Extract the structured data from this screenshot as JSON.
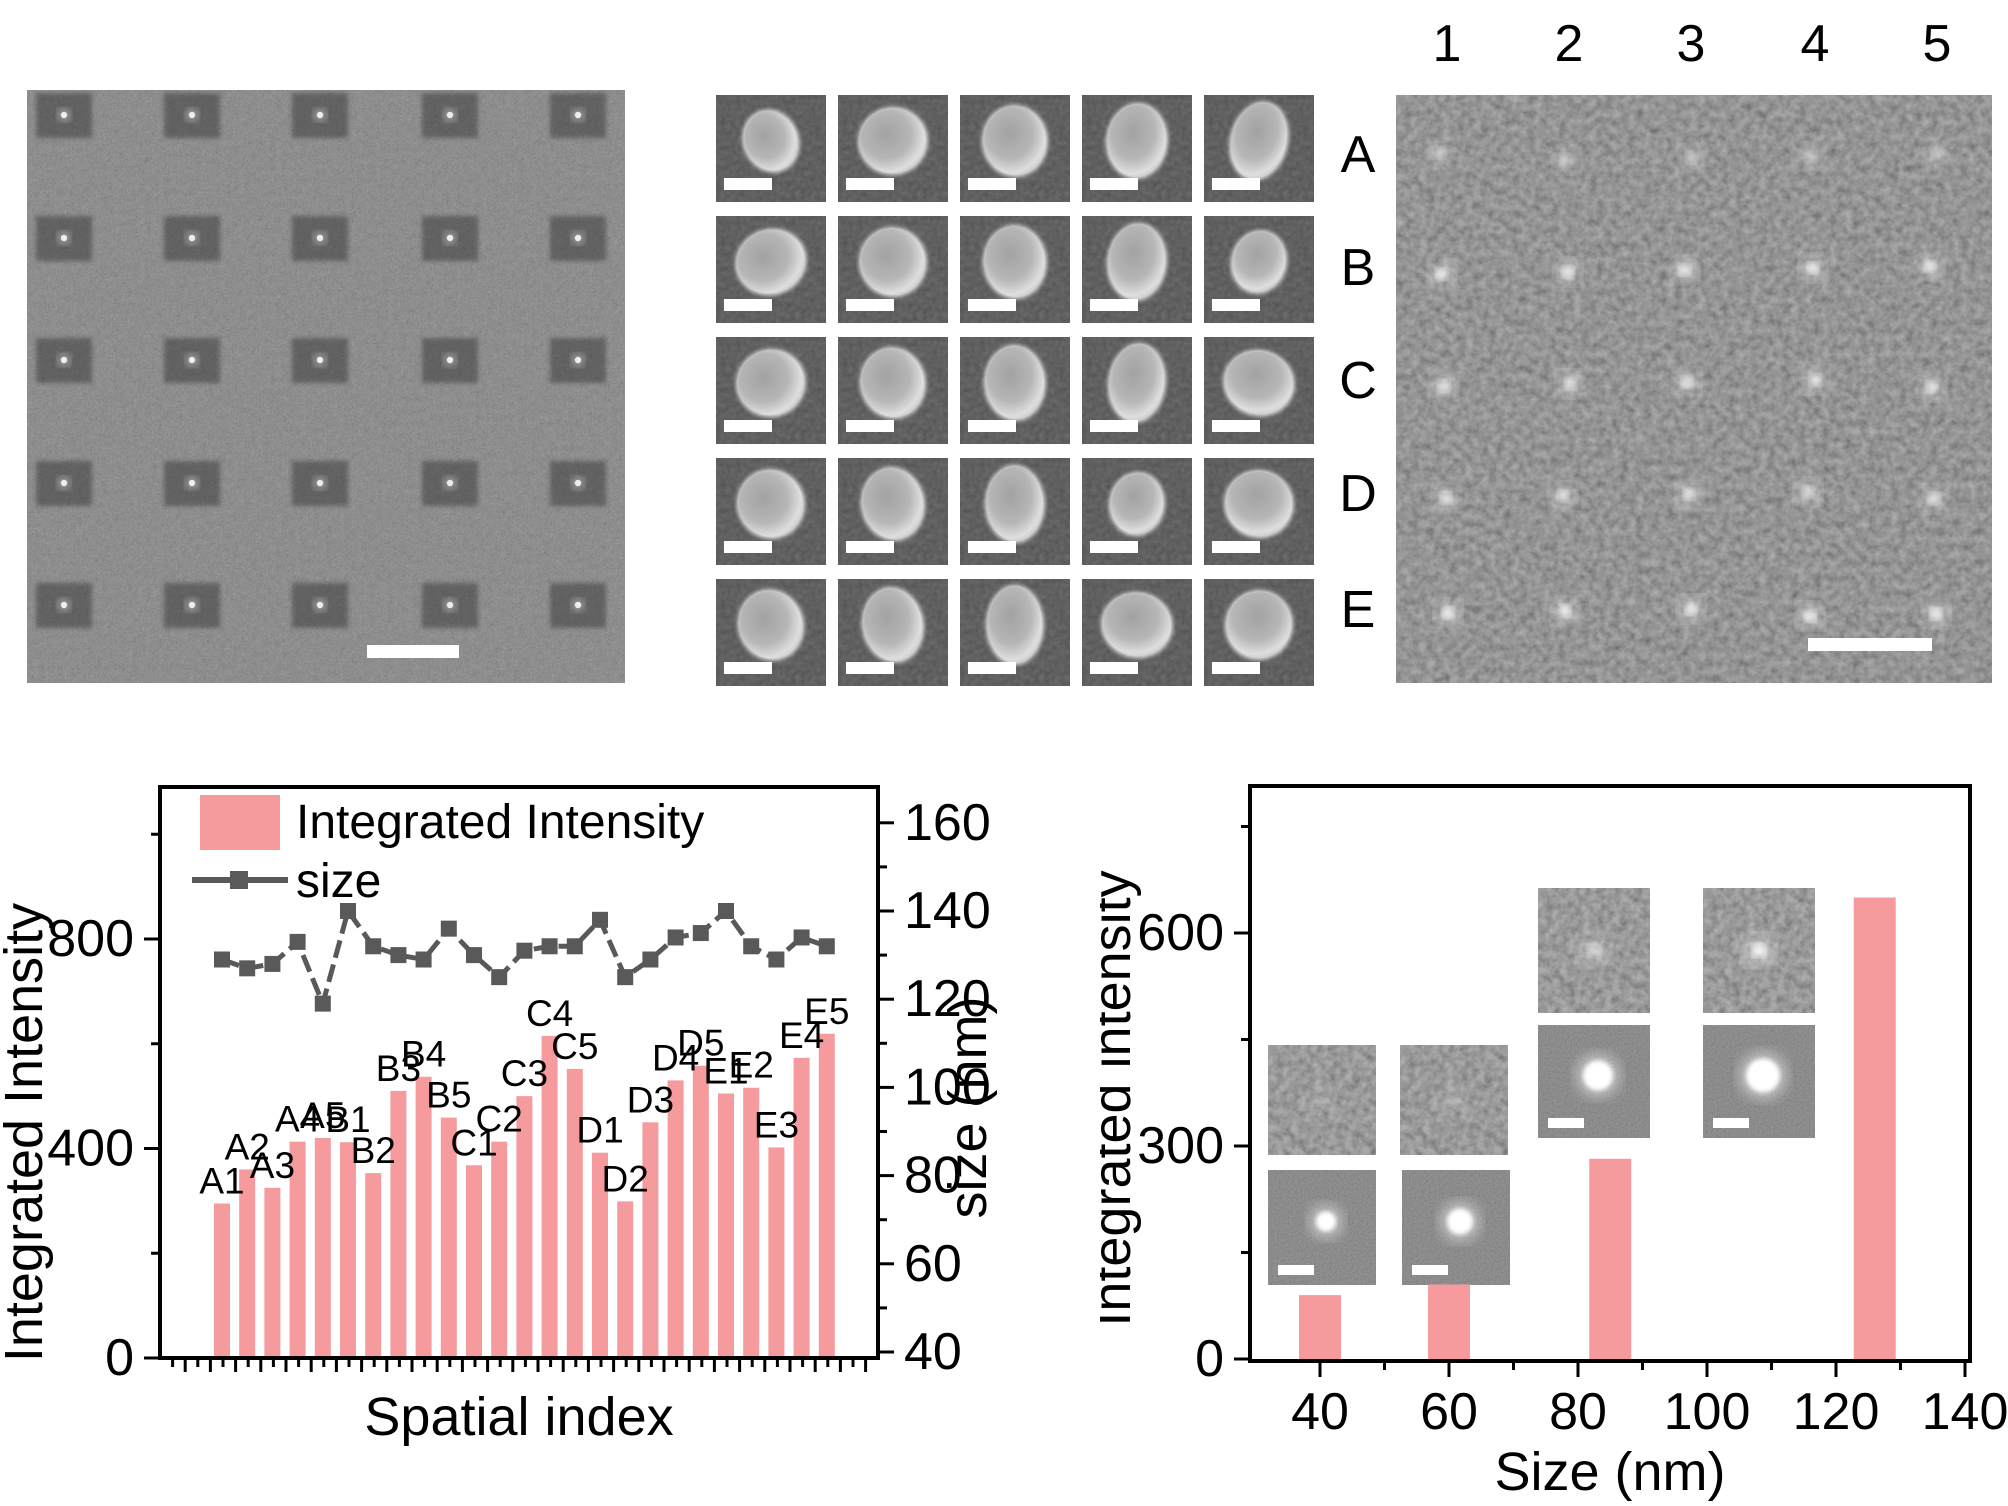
{
  "figure": {
    "background": "#ffffff",
    "colors": {
      "bar_pink": "#F59B9E",
      "line_gray": "#595959",
      "text": "#000000",
      "scale_bar": "#ffffff"
    },
    "panels": {
      "sem_overview": {
        "description": "SEM overview of patterned particle array",
        "rows": 5,
        "cols": 5,
        "has_scale_bar": true
      },
      "sem_particle_grid": {
        "description": "5x5 grid of SEM close-ups of single particles",
        "rows": 5,
        "cols": 5,
        "scale_bar_per_tile": true
      },
      "fluorescence_map": {
        "description": "Fluorescence image of the particle array",
        "col_labels": [
          "1",
          "2",
          "3",
          "4",
          "5"
        ],
        "row_labels": [
          "A",
          "B",
          "C",
          "D",
          "E"
        ],
        "has_scale_bar": true
      }
    }
  },
  "chart_data": [
    {
      "id": "intensity-by-spatial-index",
      "type": "bar+line",
      "categories": [
        "A1",
        "A2",
        "A3",
        "A4",
        "A5",
        "B1",
        "B2",
        "B3",
        "B4",
        "B5",
        "C1",
        "C2",
        "C3",
        "C4",
        "C5",
        "D1",
        "D2",
        "D3",
        "D4",
        "D5",
        "E1",
        "E2",
        "E3",
        "E4",
        "E5"
      ],
      "series": [
        {
          "name": "Integrated Intensity",
          "type": "bar",
          "axis": "left",
          "color": "#F59B9E",
          "values": [
            295,
            360,
            325,
            413,
            420,
            412,
            353,
            510,
            537,
            459,
            368,
            413,
            500,
            615,
            552,
            392,
            299,
            450,
            530,
            558,
            505,
            516,
            402,
            573,
            619
          ]
        },
        {
          "name": "size",
          "type": "line",
          "axis": "right",
          "color": "#595959",
          "values": [
            129,
            127,
            128,
            133,
            119,
            140,
            132,
            130,
            129,
            136,
            130,
            125,
            131,
            132,
            132,
            138,
            125,
            129,
            134,
            135,
            140,
            132,
            129,
            134,
            132
          ]
        }
      ],
      "xlabel": "Spatial index",
      "ylabel_left": "Integrated Intensity",
      "ylabel_right": "size (nm)",
      "ylim_left": [
        0,
        1090
      ],
      "yticks_left": [
        0,
        400,
        800
      ],
      "yticks_left_minor": [
        200,
        600,
        1000
      ],
      "ylim_right": [
        40,
        160
      ],
      "yticks_right": [
        40,
        60,
        80,
        100,
        120,
        140,
        160
      ],
      "legend": [
        "Integrated Intensity",
        "size"
      ],
      "grid": false,
      "legend_position": "top-left-inside",
      "bar_labels_above": true
    },
    {
      "id": "intensity-by-size",
      "type": "bar",
      "x": [
        40,
        60,
        85,
        126
      ],
      "values": [
        90,
        105,
        282,
        650
      ],
      "xlabel": "Size (nm)",
      "ylabel": "Integrated intensity",
      "xticks": [
        40,
        60,
        80,
        100,
        120,
        140
      ],
      "xticks_minor": [
        50,
        70,
        90,
        110,
        130
      ],
      "xlim": [
        29,
        141
      ],
      "yticks": [
        0,
        300,
        600
      ],
      "yticks_minor": [
        150,
        450,
        750
      ],
      "ylim": [
        0,
        807
      ],
      "grid": false,
      "insets": [
        {
          "id": "fluorescence-40nm",
          "kind": "fluorescence",
          "x": 168,
          "y": 305,
          "w": 108,
          "h": 110,
          "blob": 0.15,
          "scale_bar": false
        },
        {
          "id": "fluorescence-60nm",
          "kind": "fluorescence",
          "x": 300,
          "y": 305,
          "w": 108,
          "h": 110,
          "blob": 0.2,
          "scale_bar": false
        },
        {
          "id": "fluorescence-85nm",
          "kind": "fluorescence",
          "x": 438,
          "y": 148,
          "w": 112,
          "h": 125,
          "blob": 0.55,
          "scale_bar": false
        },
        {
          "id": "fluorescence-125nm",
          "kind": "fluorescence",
          "x": 603,
          "y": 148,
          "w": 112,
          "h": 125,
          "blob": 0.95,
          "scale_bar": false
        },
        {
          "id": "sem-85nm",
          "kind": "sem",
          "x": 438,
          "y": 285,
          "w": 112,
          "h": 113,
          "blob": 15,
          "scale_bar": true
        },
        {
          "id": "sem-125nm",
          "kind": "sem",
          "x": 603,
          "y": 285,
          "w": 112,
          "h": 113,
          "blob": 17,
          "scale_bar": true
        },
        {
          "id": "sem-40nm",
          "kind": "sem",
          "x": 168,
          "y": 430,
          "w": 108,
          "h": 115,
          "blob": 10,
          "scale_bar": true
        },
        {
          "id": "sem-60nm",
          "kind": "sem",
          "x": 302,
          "y": 430,
          "w": 108,
          "h": 115,
          "blob": 13,
          "scale_bar": true
        }
      ]
    }
  ]
}
